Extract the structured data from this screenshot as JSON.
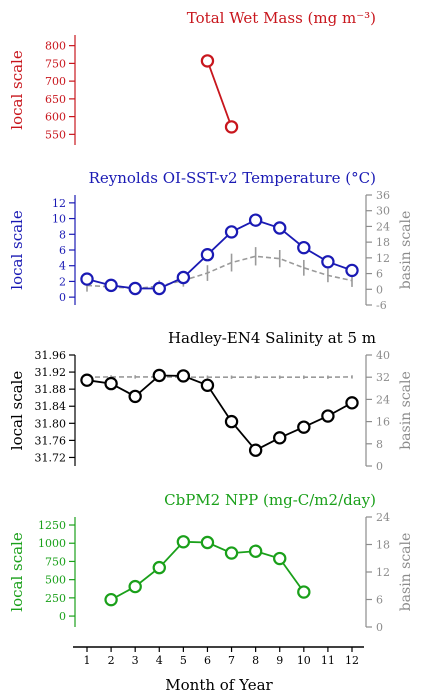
{
  "chart_data": [
    {
      "type": "line",
      "title": "Total Wet Mass (mg m⁻³)",
      "color": "#c8161d",
      "y_left_label": "local scale",
      "y_left_ticks": [
        "550",
        "600",
        "650",
        "700",
        "750",
        "800"
      ],
      "y_left_lim": [
        520,
        830
      ],
      "x": [
        6,
        7
      ],
      "series": [
        {
          "axis": "local",
          "values": [
            757,
            571
          ],
          "marker": "circle"
        }
      ]
    },
    {
      "type": "line",
      "title": "Reynolds OI-SST-v2 Temperature (°C)",
      "color": "#1a1ab4",
      "y_left_label": "local scale",
      "y_left_ticks": [
        "0",
        "2",
        "4",
        "6",
        "8",
        "10",
        "12"
      ],
      "y_left_lim": [
        -1,
        13
      ],
      "y_right_label": "basin scale",
      "y_right_ticks": [
        "-6",
        "0",
        "6",
        "12",
        "18",
        "24",
        "30",
        "36"
      ],
      "y_right_lim": [
        -6,
        36
      ],
      "x": [
        1,
        2,
        3,
        4,
        5,
        6,
        7,
        8,
        9,
        10,
        11,
        12
      ],
      "series": [
        {
          "axis": "local",
          "values": [
            2.3,
            1.5,
            1.1,
            1.1,
            2.5,
            5.4,
            8.3,
            9.8,
            8.8,
            6.3,
            4.5,
            3.4
          ],
          "marker": "circle"
        },
        {
          "axis": "basin",
          "style": "dashed",
          "color": "#9a9a9a",
          "values": [
            1.5,
            0.9,
            0.3,
            1.2,
            3.4,
            6.2,
            10.2,
            12.6,
            11.7,
            8.2,
            5.3,
            3.3
          ],
          "error": [
            2.4,
            2.0,
            1.8,
            2.2,
            2.4,
            3.0,
            3.4,
            3.5,
            3.3,
            3.0,
            2.6,
            2.4
          ]
        }
      ]
    },
    {
      "type": "line",
      "title": "Hadley-EN4 Salinity at 5 m",
      "color": "#000000",
      "y_left_label": "local scale",
      "y_left_ticks": [
        "31.72",
        "31.76",
        "31.80",
        "31.84",
        "31.88",
        "31.92",
        "31.96"
      ],
      "y_left_lim": [
        31.7,
        31.96
      ],
      "y_right_label": "basin scale",
      "y_right_ticks": [
        "0",
        "8",
        "16",
        "24",
        "32",
        "40"
      ],
      "y_right_lim": [
        0,
        40
      ],
      "x": [
        1,
        2,
        3,
        4,
        5,
        6,
        7,
        8,
        9,
        10,
        11,
        12
      ],
      "series": [
        {
          "axis": "local",
          "values": [
            31.901,
            31.893,
            31.863,
            31.912,
            31.911,
            31.889,
            31.804,
            31.737,
            31.766,
            31.791,
            31.817,
            31.848
          ],
          "marker": "circle"
        },
        {
          "axis": "basin",
          "style": "dashed",
          "color": "#9a9a9a",
          "values": [
            32.0,
            32.1,
            32.1,
            32.1,
            32.0,
            32.0,
            32.0,
            32.0,
            32.0,
            32.0,
            32.0,
            32.1
          ],
          "error": [
            0.6,
            0.6,
            0.6,
            0.6,
            0.6,
            0.6,
            0.6,
            0.6,
            0.6,
            0.6,
            0.6,
            0.6
          ]
        }
      ]
    },
    {
      "type": "line",
      "title": "CbPM2 NPP (mg-C/m2/day)",
      "color": "#1aa01a",
      "y_left_label": "local scale",
      "y_left_ticks": [
        "0",
        "250",
        "500",
        "750",
        "1000",
        "1250"
      ],
      "y_left_lim": [
        -150,
        1360
      ],
      "y_right_label": "basin scale",
      "y_right_ticks": [
        "0",
        "6",
        "12",
        "18",
        "24"
      ],
      "y_right_lim": [
        0,
        24
      ],
      "x": [
        2,
        3,
        4,
        5,
        6,
        7,
        8,
        9,
        10
      ],
      "series": [
        {
          "axis": "local",
          "values": [
            225,
            405,
            665,
            1020,
            1010,
            865,
            890,
            790,
            330
          ],
          "marker": "circle"
        }
      ]
    }
  ],
  "x_axis": {
    "label": "Month of Year",
    "ticks": [
      "1",
      "2",
      "3",
      "4",
      "5",
      "6",
      "7",
      "8",
      "9",
      "10",
      "11",
      "12"
    ]
  }
}
